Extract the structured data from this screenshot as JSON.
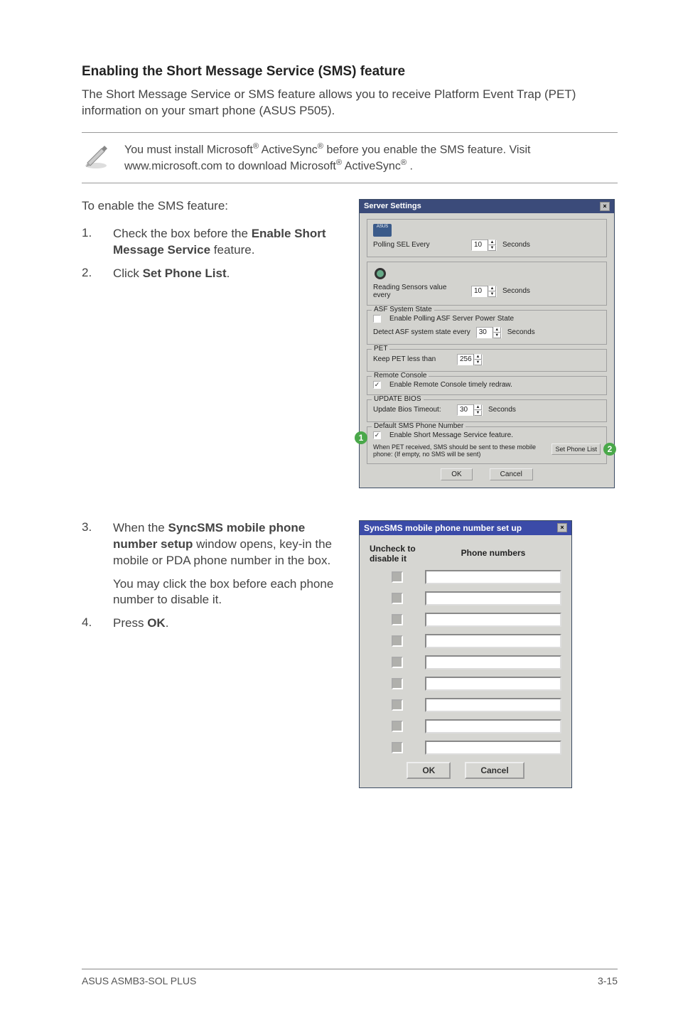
{
  "heading": "Enabling the Short Message Service (SMS) feature",
  "intro_para": "The Short Message Service or SMS feature allows you to receive Platform Event Trap (PET) information on your smart phone (ASUS P505).",
  "note": {
    "line1_a": "You must install Microsoft",
    "line1_b": " ActiveSync",
    "line1_c": " before you enable the SMS feature. Visit www.microsoft.com to download Microsoft",
    "line1_d": " ActiveSync",
    "line1_e": " ."
  },
  "enable_intro": "To enable the SMS feature:",
  "step1_a": "Check the box before the ",
  "step1_b": "Enable Short Message Service",
  "step1_c": " feature.",
  "step2_a": "Click ",
  "step2_b": "Set Phone List",
  "step2_c": ".",
  "step3_a": "When the ",
  "step3_b": "SyncSMS mobile phone number setup",
  "step3_c": " window opens, key-in the mobile or PDA phone number in the box.",
  "step3_extra": "You may click the box before each phone number to disable it.",
  "step4_a": " Press ",
  "step4_b": "OK",
  "step4_c": ".",
  "server_dialog": {
    "title": "Server Settings",
    "polling_sel": "Polling SEL Every",
    "polling_val": "10",
    "seconds": "Seconds",
    "sensors_label": "Reading Sensors value every",
    "sensors_val": "10",
    "asf_legend": "ASF System State",
    "asf_chk": "Enable Polling ASF Server Power State",
    "asf_detect": "Detect ASF system state every",
    "asf_val": "30",
    "pet_legend": "PET",
    "pet_label": "Keep PET less than",
    "pet_val": "256",
    "remote_legend": "Remote Console",
    "remote_chk": "Enable Remote Console timely redraw.",
    "update_legend": "UPDATE BIOS",
    "update_label": "Update Bios Timeout:",
    "update_val": "30",
    "sms_legend": "Default SMS Phone Number",
    "sms_chk": "Enable Short Message Service feature.",
    "sms_text": "When PET received, SMS should be sent to these mobile phone: (If empty, no SMS will be sent)",
    "set_phone": "Set Phone List",
    "ok": "OK",
    "cancel": "Cancel",
    "callout1": "1",
    "callout2": "2"
  },
  "sync_dialog": {
    "title": "SyncSMS mobile phone number set up",
    "col1": "Uncheck to disable it",
    "col2": "Phone numbers",
    "rows": 9,
    "ok": "OK",
    "cancel": "Cancel"
  },
  "footer": {
    "left": "ASUS ASMB3-SOL PLUS",
    "right": "3-15"
  },
  "nums": {
    "n1": "1.",
    "n2": "2.",
    "n3": "3.",
    "n4": "4."
  },
  "colors": {
    "dialog_title_bg": "#3b4b7a",
    "callout_bg": "#4aa84a"
  }
}
